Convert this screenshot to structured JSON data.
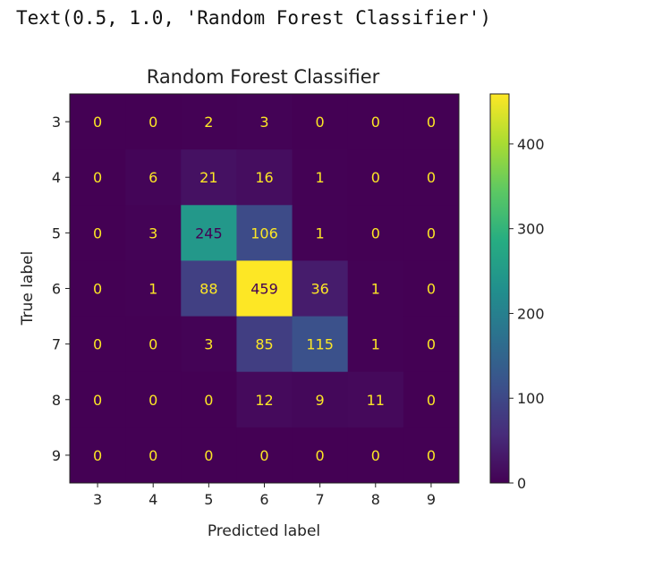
{
  "output": {
    "text": "Text(0.5, 1.0, 'Random Forest Classifier')"
  },
  "chart_data": {
    "type": "heatmap",
    "title": "Random Forest Classifier",
    "xlabel": "Predicted label",
    "ylabel": "True label",
    "x_categories": [
      "3",
      "4",
      "5",
      "6",
      "7",
      "8",
      "9"
    ],
    "y_categories": [
      "3",
      "4",
      "5",
      "6",
      "7",
      "8",
      "9"
    ],
    "values": [
      [
        0,
        0,
        2,
        3,
        0,
        0,
        0
      ],
      [
        0,
        6,
        21,
        16,
        1,
        0,
        0
      ],
      [
        0,
        3,
        245,
        106,
        1,
        0,
        0
      ],
      [
        0,
        1,
        88,
        459,
        36,
        1,
        0
      ],
      [
        0,
        0,
        3,
        85,
        115,
        1,
        0
      ],
      [
        0,
        0,
        0,
        12,
        9,
        11,
        0
      ],
      [
        0,
        0,
        0,
        0,
        0,
        0,
        0
      ]
    ],
    "colormap": "viridis",
    "colorbar": {
      "range": [
        0,
        459
      ],
      "ticks": [
        0,
        100,
        200,
        300,
        400
      ]
    },
    "grid": false
  }
}
